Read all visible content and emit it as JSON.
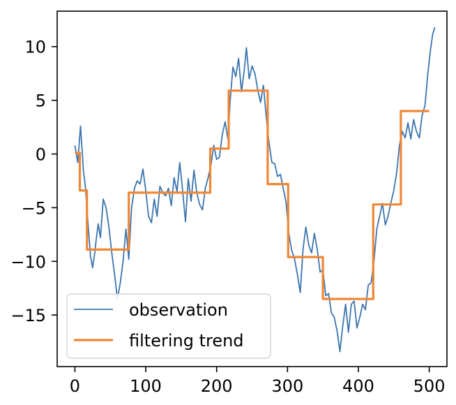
{
  "chart_data": {
    "type": "line",
    "title": "",
    "xlabel": "",
    "ylabel": "",
    "xlim": [
      -25,
      525
    ],
    "ylim": [
      -19.8,
      13.3
    ],
    "x_ticks": [
      0,
      100,
      200,
      300,
      400,
      500
    ],
    "x_tick_labels": [
      "0",
      "100",
      "200",
      "300",
      "400",
      "500"
    ],
    "y_ticks": [
      10,
      5,
      0,
      -5,
      -10,
      -15
    ],
    "y_tick_labels": [
      "10",
      "5",
      "0",
      "−5",
      "−10",
      "−15"
    ],
    "grid": false,
    "legend": {
      "placement": "lower-left",
      "entries": [
        "observation",
        "filtering trend"
      ]
    },
    "series": [
      {
        "name": "observation",
        "color": "#3b75af",
        "style": "thin-line",
        "points": [
          [
            0,
            0.8
          ],
          [
            4,
            -0.8
          ],
          [
            8,
            2.6
          ],
          [
            12,
            -1.5
          ],
          [
            15,
            -3.2
          ],
          [
            18,
            -6.0
          ],
          [
            22,
            -9.5
          ],
          [
            25,
            -10.6
          ],
          [
            28,
            -9.2
          ],
          [
            30,
            -8.0
          ],
          [
            33,
            -6.5
          ],
          [
            36,
            -7.8
          ],
          [
            40,
            -4.2
          ],
          [
            44,
            -5.0
          ],
          [
            48,
            -6.8
          ],
          [
            52,
            -9.2
          ],
          [
            56,
            -11.2
          ],
          [
            60,
            -13.5
          ],
          [
            64,
            -12.0
          ],
          [
            68,
            -10.0
          ],
          [
            72,
            -7.0
          ],
          [
            76,
            -9.8
          ],
          [
            80,
            -5.0
          ],
          [
            84,
            -3.2
          ],
          [
            88,
            -2.5
          ],
          [
            92,
            -2.8
          ],
          [
            96,
            -1.4
          ],
          [
            100,
            -3.4
          ],
          [
            104,
            -5.8
          ],
          [
            108,
            -6.4
          ],
          [
            112,
            -4.2
          ],
          [
            116,
            -5.8
          ],
          [
            120,
            -3.0
          ],
          [
            124,
            -3.6
          ],
          [
            128,
            -3.9
          ],
          [
            132,
            -3.2
          ],
          [
            136,
            -4.8
          ],
          [
            140,
            -2.2
          ],
          [
            144,
            -3.5
          ],
          [
            148,
            -0.8
          ],
          [
            152,
            -3.4
          ],
          [
            156,
            -6.3
          ],
          [
            160,
            -2.3
          ],
          [
            164,
            -4.4
          ],
          [
            168,
            -1.5
          ],
          [
            172,
            -3.6
          ],
          [
            176,
            -4.7
          ],
          [
            180,
            -5.2
          ],
          [
            184,
            -3.2
          ],
          [
            188,
            -2.2
          ],
          [
            192,
            -1.0
          ],
          [
            196,
            0.8
          ],
          [
            200,
            -0.5
          ],
          [
            204,
            -0.3
          ],
          [
            208,
            1.8
          ],
          [
            212,
            3.0
          ],
          [
            216,
            1.4
          ],
          [
            219,
            4.9
          ],
          [
            223,
            8.1
          ],
          [
            227,
            7.2
          ],
          [
            231,
            8.9
          ],
          [
            235,
            5.8
          ],
          [
            239,
            7.8
          ],
          [
            242,
            9.9
          ],
          [
            246,
            7.0
          ],
          [
            250,
            8.2
          ],
          [
            254,
            7.5
          ],
          [
            258,
            6.0
          ],
          [
            262,
            4.8
          ],
          [
            266,
            6.4
          ],
          [
            270,
            3.5
          ],
          [
            274,
            1.0
          ],
          [
            278,
            -0.8
          ],
          [
            282,
            -0.9
          ],
          [
            286,
            -2.1
          ],
          [
            290,
            -1.9
          ],
          [
            294,
            -3.2
          ],
          [
            298,
            -4.5
          ],
          [
            302,
            -7.5
          ],
          [
            306,
            -9.0
          ],
          [
            310,
            -9.8
          ],
          [
            314,
            -11.2
          ],
          [
            318,
            -12.9
          ],
          [
            322,
            -8.8
          ],
          [
            326,
            -6.8
          ],
          [
            330,
            -8.5
          ],
          [
            334,
            -9.2
          ],
          [
            338,
            -7.4
          ],
          [
            342,
            -8.9
          ],
          [
            346,
            -11.0
          ],
          [
            350,
            -10.8
          ],
          [
            354,
            -13.2
          ],
          [
            358,
            -13.0
          ],
          [
            362,
            -14.8
          ],
          [
            366,
            -15.2
          ],
          [
            370,
            -16.5
          ],
          [
            374,
            -18.4
          ],
          [
            378,
            -16.0
          ],
          [
            382,
            -14.0
          ],
          [
            386,
            -16.6
          ],
          [
            390,
            -14.0
          ],
          [
            394,
            -13.7
          ],
          [
            398,
            -16.2
          ],
          [
            402,
            -15.2
          ],
          [
            406,
            -14.0
          ],
          [
            410,
            -14.5
          ],
          [
            414,
            -12.2
          ],
          [
            418,
            -12.0
          ],
          [
            422,
            -10.0
          ],
          [
            426,
            -7.0
          ],
          [
            430,
            -5.8
          ],
          [
            434,
            -4.6
          ],
          [
            438,
            -6.6
          ],
          [
            442,
            -5.8
          ],
          [
            446,
            -4.5
          ],
          [
            450,
            -3.4
          ],
          [
            454,
            -1.8
          ],
          [
            458,
            0.8
          ],
          [
            462,
            2.1
          ],
          [
            466,
            1.5
          ],
          [
            470,
            2.9
          ],
          [
            474,
            1.4
          ],
          [
            478,
            3.2
          ],
          [
            482,
            2.1
          ],
          [
            486,
            1.5
          ],
          [
            490,
            3.6
          ],
          [
            494,
            4.5
          ],
          [
            498,
            7.5
          ],
          [
            502,
            9.8
          ],
          [
            505,
            11.2
          ],
          [
            508,
            11.8
          ]
        ]
      },
      {
        "name": "filtering trend",
        "color": "#ef8636",
        "style": "thick-step",
        "points": [
          [
            0,
            0.1
          ],
          [
            7,
            0.1
          ],
          [
            7,
            -3.4
          ],
          [
            17,
            -3.4
          ],
          [
            17,
            -8.9
          ],
          [
            76,
            -8.9
          ],
          [
            76,
            -3.6
          ],
          [
            191,
            -3.6
          ],
          [
            191,
            0.5
          ],
          [
            217,
            0.5
          ],
          [
            217,
            5.9
          ],
          [
            272,
            5.9
          ],
          [
            272,
            -2.8
          ],
          [
            301,
            -2.8
          ],
          [
            301,
            -9.6
          ],
          [
            350,
            -9.6
          ],
          [
            350,
            -13.5
          ],
          [
            421,
            -13.5
          ],
          [
            421,
            -4.7
          ],
          [
            460,
            -4.7
          ],
          [
            460,
            4.0
          ],
          [
            500,
            4.0
          ]
        ]
      }
    ]
  }
}
